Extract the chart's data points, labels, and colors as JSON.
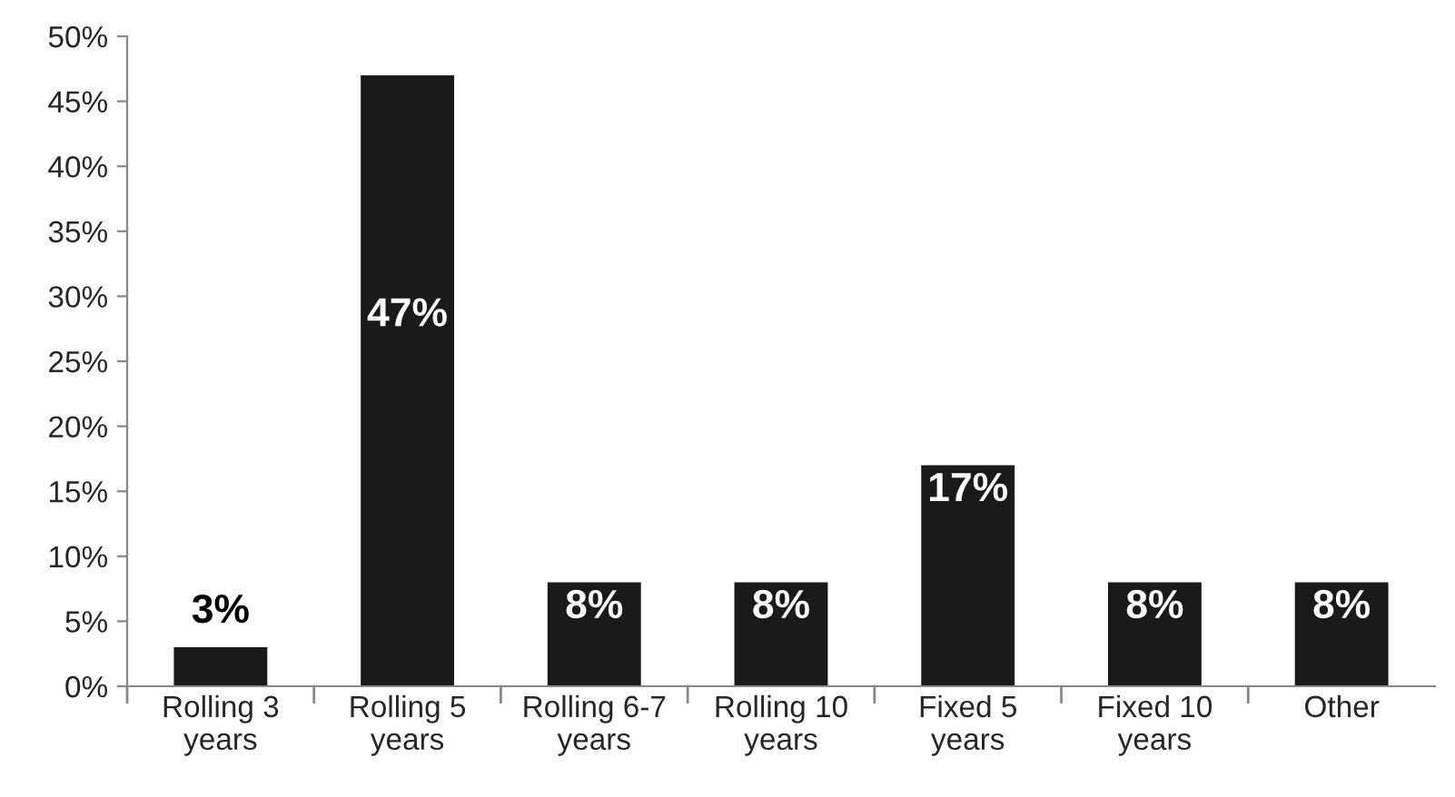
{
  "chart_data": {
    "type": "bar",
    "categories": [
      "Rolling 3\nyears",
      "Rolling 5\nyears",
      "Rolling 6-7\nyears",
      "Rolling 10\nyears",
      "Fixed 5\nyears",
      "Fixed 10\nyears",
      "Other"
    ],
    "values": [
      3,
      47,
      8,
      8,
      17,
      8,
      8
    ],
    "color": "#1a1a1a",
    "ylim": [
      0,
      50
    ],
    "yticks": [
      {
        "value": 0,
        "label": "0%"
      },
      {
        "value": 5,
        "label": "5%"
      },
      {
        "value": 10,
        "label": "10%"
      },
      {
        "value": 15,
        "label": "15%"
      },
      {
        "value": 20,
        "label": "20%"
      },
      {
        "value": 25,
        "label": "25%"
      },
      {
        "value": 30,
        "label": "30%"
      },
      {
        "value": 35,
        "label": "35%"
      },
      {
        "value": 40,
        "label": "40%"
      },
      {
        "value": 45,
        "label": "45%"
      },
      {
        "value": 50,
        "label": "50%"
      }
    ],
    "value_labels": [
      "3%",
      "47%",
      "8%",
      "8%",
      "17%",
      "8%",
      "8%"
    ],
    "grid": false
  }
}
